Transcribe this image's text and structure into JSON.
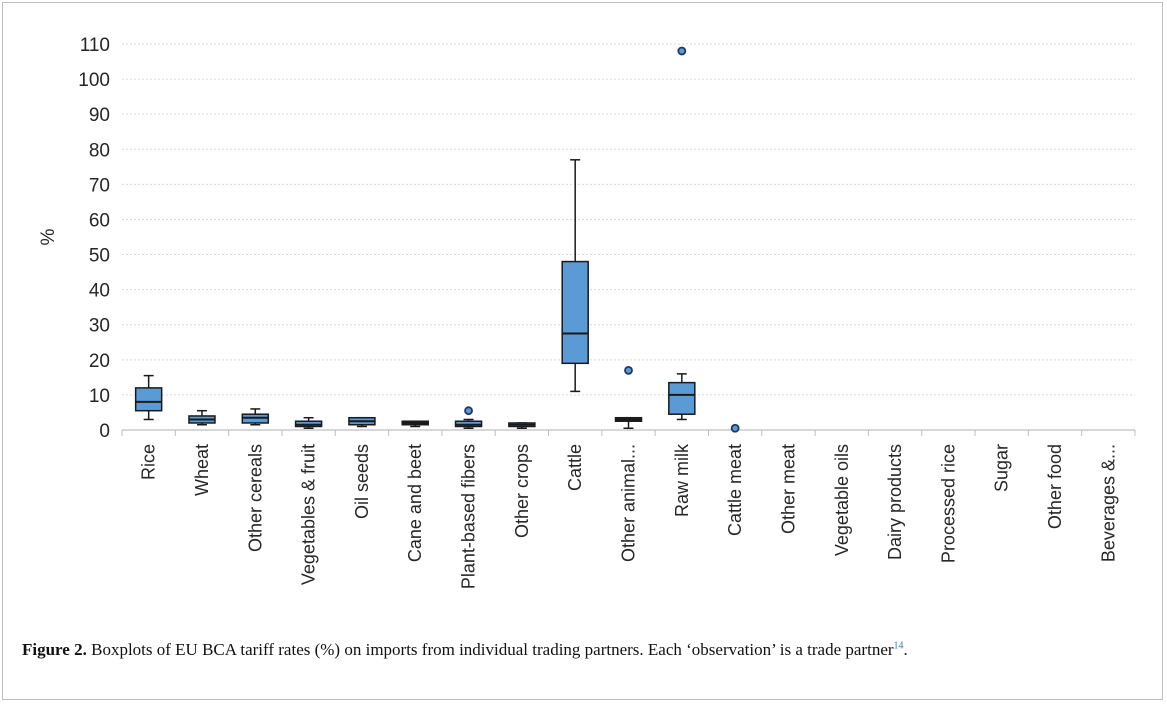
{
  "caption": {
    "label": "Figure 2.",
    "text": " Boxplots of EU BCA tariff rates (%) on imports from individual trading partners. Each ‘observation’ is a trade partner",
    "ref": "14",
    "end": "."
  },
  "colors": {
    "box_fill": "#5b9bd5",
    "box_stroke": "#1a1a1a",
    "grid": "#d9d9d9",
    "axis": "#bfbfbf"
  },
  "chart_data": {
    "type": "box",
    "title": "",
    "xlabel": "",
    "ylabel": "%",
    "ylim": [
      0,
      110
    ],
    "yticks": [
      0,
      10,
      20,
      30,
      40,
      50,
      60,
      70,
      80,
      90,
      100,
      110
    ],
    "grid": true,
    "categories": [
      "Rice",
      "Wheat",
      "Other cereals",
      "Vegetables & fruit",
      "Oil seeds",
      "Cane and beet",
      "Plant-based fibers",
      "Other crops",
      "Cattle",
      "Other animal...",
      "Raw milk",
      "Cattle meat",
      "Other meat",
      "Vegetable oils",
      "Dairy products",
      "Processed rice",
      "Sugar",
      "Other food",
      "Beverages &..."
    ],
    "boxes": [
      {
        "category": "Rice",
        "min": 3,
        "q1": 5.5,
        "median": 8,
        "q3": 12,
        "max": 15.5,
        "outliers": []
      },
      {
        "category": "Wheat",
        "min": 1.5,
        "q1": 2,
        "median": 3,
        "q3": 4,
        "max": 5.5,
        "outliers": []
      },
      {
        "category": "Other cereals",
        "min": 1.5,
        "q1": 2,
        "median": 3.5,
        "q3": 4.5,
        "max": 6,
        "outliers": []
      },
      {
        "category": "Vegetables & fruit",
        "min": 0.5,
        "q1": 1,
        "median": 1.5,
        "q3": 2.5,
        "max": 3.5,
        "outliers": []
      },
      {
        "category": "Oil seeds",
        "min": 1,
        "q1": 1.5,
        "median": 2.5,
        "q3": 3.5,
        "max": 3.5,
        "outliers": []
      },
      {
        "category": "Cane and beet",
        "min": 1,
        "q1": 1.5,
        "median": 2,
        "q3": 2.5,
        "max": 2.5,
        "outliers": []
      },
      {
        "category": "Plant-based fibers",
        "min": 0.5,
        "q1": 1,
        "median": 1.5,
        "q3": 2.5,
        "max": 3,
        "outliers": [
          5.5
        ]
      },
      {
        "category": "Other crops",
        "min": 0.5,
        "q1": 1,
        "median": 1.5,
        "q3": 2,
        "max": 2,
        "outliers": []
      },
      {
        "category": "Cattle",
        "min": 11,
        "q1": 19,
        "median": 27.5,
        "q3": 48,
        "max": 77,
        "outliers": []
      },
      {
        "category": "Other animal...",
        "min": 0.5,
        "q1": 2.5,
        "median": 3,
        "q3": 3.5,
        "max": 3.5,
        "outliers": [
          17
        ]
      },
      {
        "category": "Raw milk",
        "min": 3,
        "q1": 4.5,
        "median": 10,
        "q3": 13.5,
        "max": 16,
        "outliers": [
          108
        ]
      },
      {
        "category": "Cattle meat",
        "min": null,
        "q1": null,
        "median": null,
        "q3": null,
        "max": null,
        "outliers": [
          0.5
        ]
      },
      {
        "category": "Other meat",
        "min": null,
        "q1": null,
        "median": null,
        "q3": null,
        "max": null,
        "outliers": []
      },
      {
        "category": "Vegetable oils",
        "min": null,
        "q1": null,
        "median": null,
        "q3": null,
        "max": null,
        "outliers": []
      },
      {
        "category": "Dairy products",
        "min": null,
        "q1": null,
        "median": null,
        "q3": null,
        "max": null,
        "outliers": []
      },
      {
        "category": "Processed rice",
        "min": null,
        "q1": null,
        "median": null,
        "q3": null,
        "max": null,
        "outliers": []
      },
      {
        "category": "Sugar",
        "min": null,
        "q1": null,
        "median": null,
        "q3": null,
        "max": null,
        "outliers": []
      },
      {
        "category": "Other food",
        "min": null,
        "q1": null,
        "median": null,
        "q3": null,
        "max": null,
        "outliers": []
      },
      {
        "category": "Beverages &...",
        "min": null,
        "q1": null,
        "median": null,
        "q3": null,
        "max": null,
        "outliers": []
      }
    ]
  }
}
